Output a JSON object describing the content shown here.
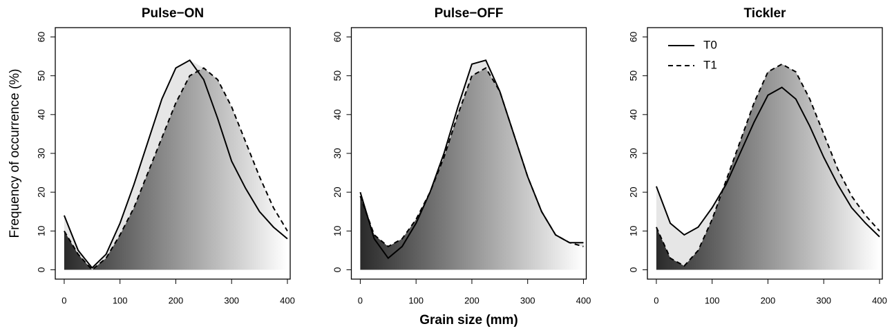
{
  "chart_data": [
    {
      "type": "line",
      "title": "Pulse−ON",
      "y_label": "Frequency of occurrence (%)",
      "x": [
        0,
        25,
        50,
        75,
        100,
        125,
        150,
        175,
        200,
        225,
        250,
        275,
        300,
        325,
        350,
        375,
        400
      ],
      "series": [
        {
          "name": "T0",
          "color": "#000000",
          "linestyle": "solid",
          "values": [
            14,
            5,
            0.5,
            4,
            12,
            22,
            33,
            44,
            52,
            54,
            49,
            39,
            28,
            21,
            15,
            11,
            8
          ]
        },
        {
          "name": "T1",
          "color": "#000000",
          "linestyle": "dashed",
          "values": [
            10,
            4,
            0,
            3,
            9,
            16,
            25,
            34,
            43,
            50,
            52,
            49,
            42,
            33,
            24,
            16,
            10
          ]
        }
      ],
      "xlim": [
        -16,
        405
      ],
      "ylim": [
        -2.4,
        62.4
      ],
      "xticks": [
        0,
        100,
        200,
        300,
        400
      ],
      "yticks": [
        0,
        10,
        20,
        30,
        40,
        50,
        60
      ],
      "fill_gradient": [
        "#2a2a2a",
        "#ffffff"
      ],
      "between_fill": "#e6e6e6"
    },
    {
      "type": "line",
      "title": "Pulse−OFF",
      "x_label": "Grain size (mm)",
      "x": [
        0,
        25,
        50,
        75,
        100,
        125,
        150,
        175,
        200,
        225,
        250,
        275,
        300,
        325,
        350,
        375,
        400
      ],
      "series": [
        {
          "name": "T0",
          "color": "#000000",
          "linestyle": "solid",
          "values": [
            20,
            8,
            3,
            6,
            12,
            20,
            30,
            42,
            53,
            54,
            46,
            35,
            24,
            15,
            9,
            7,
            7
          ]
        },
        {
          "name": "T1",
          "color": "#000000",
          "linestyle": "dashed",
          "values": [
            19,
            9,
            6,
            8,
            13,
            20,
            29,
            40,
            50,
            52,
            46,
            35,
            24,
            15,
            9,
            7,
            6
          ]
        }
      ],
      "xlim": [
        -16,
        405
      ],
      "ylim": [
        -2.4,
        62.4
      ],
      "xticks": [
        0,
        100,
        200,
        300,
        400
      ],
      "yticks": [
        0,
        10,
        20,
        30,
        40,
        50,
        60
      ],
      "fill_gradient": [
        "#2a2a2a",
        "#ffffff"
      ],
      "between_fill": "#e6e6e6"
    },
    {
      "type": "line",
      "title": "Tickler",
      "legend": "topleft",
      "x": [
        0,
        25,
        50,
        75,
        100,
        125,
        150,
        175,
        200,
        225,
        250,
        275,
        300,
        325,
        350,
        375,
        400
      ],
      "series": [
        {
          "name": "T0",
          "color": "#000000",
          "linestyle": "solid",
          "values": [
            21.5,
            12,
            9,
            11,
            16,
            22,
            30,
            38,
            45,
            47,
            44,
            37,
            29,
            22,
            16,
            12,
            8.5
          ]
        },
        {
          "name": "T1",
          "color": "#000000",
          "linestyle": "dashed",
          "values": [
            11,
            3,
            1,
            5,
            13,
            23,
            33,
            43,
            51,
            53,
            51,
            44,
            35,
            26,
            19,
            14,
            10
          ]
        }
      ],
      "xlim": [
        -16,
        405
      ],
      "ylim": [
        -2.4,
        62.4
      ],
      "xticks": [
        0,
        100,
        200,
        300,
        400
      ],
      "yticks": [
        0,
        10,
        20,
        30,
        40,
        50,
        60
      ],
      "fill_gradient": [
        "#2a2a2a",
        "#ffffff"
      ],
      "between_fill": "#e6e6e6"
    }
  ]
}
